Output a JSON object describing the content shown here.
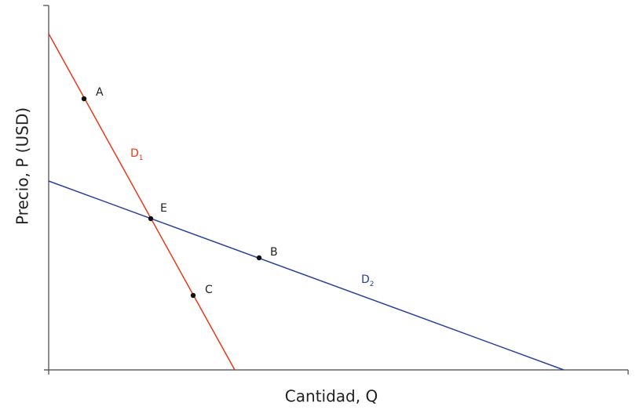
{
  "x_axis": {
    "label": "Cantidad, Q"
  },
  "y_axis": {
    "label": "Precio, P (USD)"
  },
  "curves": [
    {
      "label": "D",
      "subscript": "1"
    },
    {
      "label": "D",
      "subscript": "2"
    }
  ],
  "points": [
    {
      "label": "A"
    },
    {
      "label": "E"
    },
    {
      "label": "B"
    },
    {
      "label": "C"
    }
  ]
}
